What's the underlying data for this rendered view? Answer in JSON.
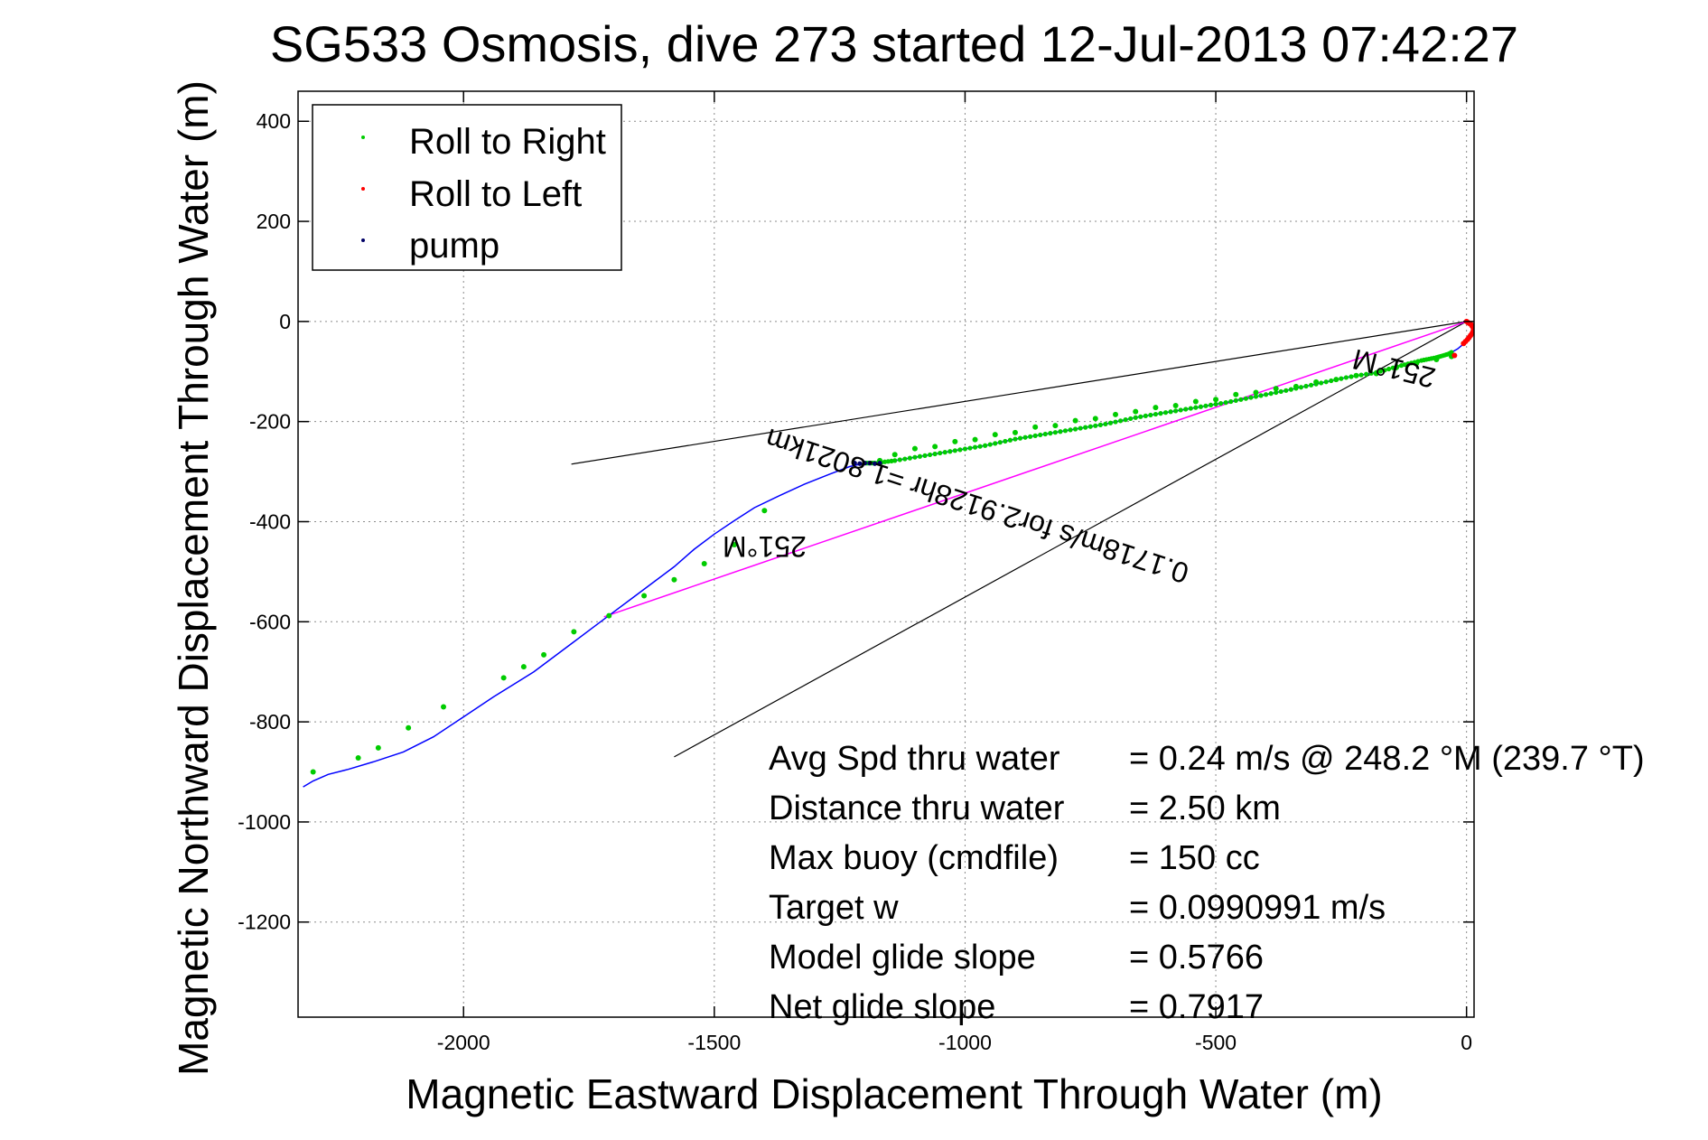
{
  "chart_data": {
    "type": "scatter",
    "title": "SG533 Osmosis, dive 273 started 12-Jul-2013 07:42:27",
    "xlabel": "Magnetic Eastward Displacement Through Water (m)",
    "ylabel": "Magnetic Northward Displacement Through Water (m)",
    "xlim": [
      -2330,
      15
    ],
    "ylim": [
      -1390,
      460
    ],
    "xticks": [
      -2000,
      -1500,
      -1000,
      -500,
      0
    ],
    "xtick_labels": [
      "-2000",
      "-1500",
      "-1000",
      "-500",
      "0"
    ],
    "yticks": [
      400,
      200,
      0,
      -200,
      -400,
      -600,
      -800,
      -1000,
      -1200
    ],
    "ytick_labels": [
      "400",
      "200",
      "0",
      "-200",
      "-400",
      "-600",
      "-800",
      "-1000",
      "-1200"
    ],
    "grid": true,
    "legend_position": "top-left",
    "legend": [
      {
        "label": "Roll to Right",
        "color": "#00cc00"
      },
      {
        "label": "Roll to Left",
        "color": "#ff0000"
      },
      {
        "label": "pump",
        "color": "#000066"
      }
    ],
    "colors": {
      "track": "#0000ff",
      "roll_right": "#00cc00",
      "roll_left": "#ff0000",
      "pump": "#000066",
      "course": "#ff00ff",
      "cone": "#000000"
    },
    "track": {
      "x": [
        0,
        10,
        14,
        10,
        2,
        -6,
        -18,
        -36,
        -60,
        -90,
        -130,
        -180,
        -240,
        -300,
        -360,
        -420,
        -480,
        -540,
        -600,
        -660,
        -720,
        -780,
        -840,
        -900,
        -960,
        -1020,
        -1080,
        -1140,
        -1180,
        -1200,
        -1230,
        -1270,
        -1320,
        -1370,
        -1420,
        -1460,
        -1500,
        -1540,
        -1580,
        -1620,
        -1660,
        -1700,
        -1740,
        -1780,
        -1820,
        -1860,
        -1900,
        -1940,
        -2000,
        -2060,
        -2120,
        -2180,
        -2230,
        -2270,
        -2300,
        -2320
      ],
      "y": [
        0,
        -5,
        -15,
        -25,
        -35,
        -45,
        -55,
        -65,
        -72,
        -78,
        -88,
        -102,
        -112,
        -125,
        -138,
        -150,
        -162,
        -172,
        -182,
        -192,
        -205,
        -215,
        -225,
        -235,
        -248,
        -258,
        -268,
        -278,
        -283,
        -283,
        -290,
        -305,
        -325,
        -348,
        -372,
        -398,
        -425,
        -455,
        -490,
        -520,
        -550,
        -580,
        -610,
        -640,
        -670,
        -700,
        -725,
        -750,
        -790,
        -830,
        -860,
        -880,
        -895,
        -905,
        -918,
        -930
      ]
    },
    "roll_left": {
      "x": [
        0,
        3,
        6,
        9,
        11,
        13,
        14,
        13,
        11,
        8,
        5,
        2,
        -2,
        -6,
        -24
      ],
      "y": [
        0,
        -2,
        -4,
        -6,
        -9,
        -12,
        -16,
        -20,
        -24,
        -28,
        -32,
        -36,
        -40,
        -44,
        -68
      ]
    },
    "roll_right": {
      "x": [
        -30,
        -60,
        -100,
        -140,
        -180,
        -220,
        -260,
        -300,
        -340,
        -380,
        -420,
        -460,
        -500,
        -540,
        -580,
        -620,
        -660,
        -700,
        -740,
        -780,
        -820,
        -860,
        -900,
        -940,
        -980,
        -1020,
        -1060,
        -1100,
        -1140,
        -1170,
        -1400,
        -1460,
        -1520,
        -1580,
        -1640,
        -1710,
        -1780,
        -1840,
        -1880,
        -1920,
        -2040,
        -2110,
        -2170,
        -2210,
        -2300
      ],
      "y": [
        -70,
        -76,
        -84,
        -92,
        -104,
        -108,
        -116,
        -121,
        -130,
        -134,
        -142,
        -146,
        -156,
        -160,
        -168,
        -172,
        -180,
        -186,
        -194,
        -198,
        -208,
        -211,
        -222,
        -226,
        -236,
        -240,
        -250,
        -254,
        -266,
        -278,
        -378,
        -446,
        -484,
        -516,
        -548,
        -588,
        -620,
        -666,
        -690,
        -712,
        -770,
        -812,
        -852,
        -872,
        -900
      ]
    },
    "pump": {
      "x": [
        -1170,
        -1180,
        -1190,
        -1200,
        -1210,
        -1220
      ],
      "y": [
        -283,
        -284,
        -283,
        -283,
        -284,
        -283
      ]
    },
    "course_line": {
      "x": [
        0,
        -1720
      ],
      "y": [
        0,
        -590
      ]
    },
    "cone_lines": [
      {
        "x": [
          0,
          -1785
        ],
        "y": [
          0,
          -285
        ]
      },
      {
        "x": [
          0,
          -1580
        ],
        "y": [
          0,
          -870
        ]
      }
    ],
    "annotations": [
      {
        "text": "251°M",
        "x": -1400,
        "y": -430,
        "rotation_deg": 180
      },
      {
        "text": "251°M",
        "x": -140,
        "y": -75,
        "rotation_deg": 194
      },
      {
        "text": "0.1718m/s for2.9128hr =1.8021km",
        "x": -970,
        "y": -350,
        "rotation_deg": 198
      }
    ],
    "stats": [
      {
        "label": "Avg Spd thru water",
        "value": "=  0.24 m/s @ 248.2 °M (239.7 °T)"
      },
      {
        "label": "Distance thru water",
        "value": "=  2.50 km"
      },
      {
        "label": "Max buoy (cmdfile)",
        "value": "= 150 cc"
      },
      {
        "label": "Target w",
        "value": "= 0.0990991 m/s"
      },
      {
        "label": "Model glide slope",
        "value": "= 0.5766"
      },
      {
        "label": "Net glide slope",
        "value": "= 0.7917"
      }
    ]
  }
}
